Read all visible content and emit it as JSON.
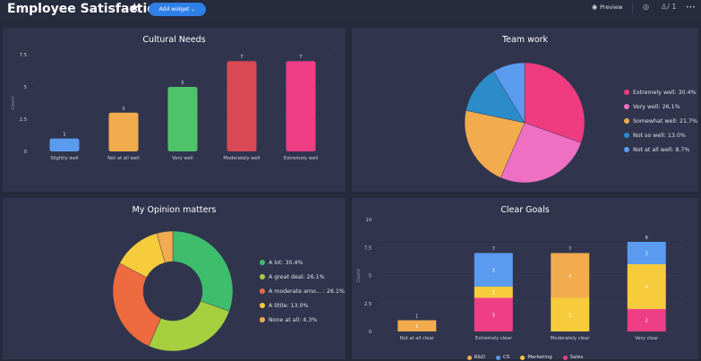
{
  "header": {
    "title": "Employee Satisfaction",
    "add_widget": "Add widget ⌄",
    "preview": "Preview",
    "members_count": "/ 1",
    "more": "•••"
  },
  "colors": {
    "background": "#252a3c",
    "panel": "#30354d",
    "accent": "#2e7fe6"
  },
  "icons": [
    "star-icon",
    "eye-icon",
    "activity-icon",
    "members-icon",
    "more-icon"
  ],
  "chart_data": [
    {
      "type": "bar",
      "title": "Cultural Needs",
      "ylabel": "Count",
      "ylim": [
        0,
        7.5
      ],
      "yticks": [
        "0",
        "2.5",
        "5",
        "7.5"
      ],
      "categories": [
        "Slightly well",
        "Not at all well",
        "Very well",
        "Moderately well",
        "Extremely well"
      ],
      "values": [
        1,
        3,
        5,
        7,
        7
      ],
      "labels": [
        "1",
        "3",
        "5",
        "7",
        "7"
      ],
      "colors": [
        "#5a9bf0",
        "#f2ab4d",
        "#4fc26a",
        "#d94855",
        "#ee3f86"
      ]
    },
    {
      "type": "pie",
      "title": "Team work",
      "legend_position": "right",
      "slices": [
        {
          "label": "Extremely well: 30.4%",
          "value": 30.4,
          "color": "#ef3b80"
        },
        {
          "label": "Very well: 26.1%",
          "value": 26.1,
          "color": "#ef6fc3"
        },
        {
          "label": "Somewhat well: 21.7%",
          "value": 21.7,
          "color": "#f2ab4d"
        },
        {
          "label": "Not so well: 13.0%",
          "value": 13.0,
          "color": "#2c8cc9"
        },
        {
          "label": "Not at all well: 8.7%",
          "value": 8.7,
          "color": "#5a9bf0"
        }
      ]
    },
    {
      "type": "pie",
      "title": "My Opinion matters",
      "legend_position": "right",
      "slices": [
        {
          "label": "A lot: 30.4%",
          "value": 30.4,
          "color": "#3ebd6d"
        },
        {
          "label": "A great deal: 26.1%",
          "value": 26.1,
          "color": "#a6cf40"
        },
        {
          "label": "A moderate amo... : 26.1%",
          "value": 26.1,
          "color": "#ee6a3f"
        },
        {
          "label": "A little: 13.0%",
          "value": 13.0,
          "color": "#f7cc3c"
        },
        {
          "label": "None at all: 4.3%",
          "value": 4.3,
          "color": "#f2ab4d"
        }
      ]
    },
    {
      "type": "bar",
      "stacked": true,
      "title": "Clear Goals",
      "ylabel": "Count",
      "ylim": [
        0,
        10
      ],
      "yticks": [
        "0",
        "2.5",
        "5",
        "7.5",
        "10"
      ],
      "categories": [
        "Not at all clear",
        "Extremely clear",
        "Moderately clear",
        "Very clear"
      ],
      "totals": [
        "1",
        "7",
        "7",
        "8"
      ],
      "legend_position": "bottom",
      "series": [
        {
          "name": "Sales",
          "color": "#ee3f86",
          "values": [
            0,
            3,
            0,
            2
          ]
        },
        {
          "name": "Marketing",
          "color": "#f7cc3c",
          "values": [
            0,
            1,
            3,
            4
          ]
        },
        {
          "name": "R&D",
          "color": "#f2ab4d",
          "values": [
            1,
            0,
            4,
            0
          ]
        },
        {
          "name": "CS",
          "color": "#5a9bf0",
          "values": [
            0,
            3,
            0,
            2
          ]
        }
      ],
      "legend": [
        {
          "name": "R&D",
          "color": "#f2ab4d"
        },
        {
          "name": "CS",
          "color": "#5a9bf0"
        },
        {
          "name": "Marketing",
          "color": "#f7cc3c"
        },
        {
          "name": "Sales",
          "color": "#ee3f86"
        }
      ]
    }
  ]
}
